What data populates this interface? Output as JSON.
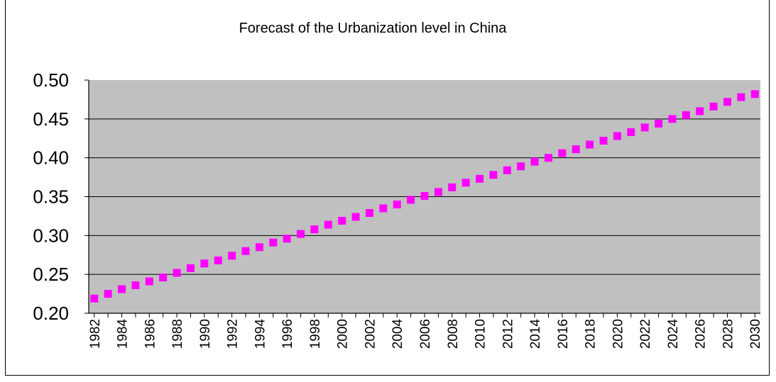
{
  "chart_data": {
    "type": "scatter",
    "title": "Forecast of the Urbanization level in China",
    "xlabel": "",
    "ylabel": "",
    "ylim": [
      0.2,
      0.5
    ],
    "yticks": [
      "0.20",
      "0.25",
      "0.30",
      "0.35",
      "0.40",
      "0.45",
      "0.50"
    ],
    "xticks": [
      "1982",
      "1984",
      "1986",
      "1988",
      "1990",
      "1992",
      "1994",
      "1996",
      "1998",
      "2000",
      "2002",
      "2004",
      "2006",
      "2008",
      "2010",
      "2012",
      "2014",
      "2016",
      "2018",
      "2020",
      "2022",
      "2024",
      "2026",
      "2028",
      "2030"
    ],
    "grid": true,
    "legend": "none",
    "plot_background": "#c0c0c0",
    "marker_color": "#ff00ff",
    "x": [
      1982,
      1983,
      1984,
      1985,
      1986,
      1987,
      1988,
      1989,
      1990,
      1991,
      1992,
      1993,
      1994,
      1995,
      1996,
      1997,
      1998,
      1999,
      2000,
      2001,
      2002,
      2003,
      2004,
      2005,
      2006,
      2007,
      2008,
      2009,
      2010,
      2011,
      2012,
      2013,
      2014,
      2015,
      2016,
      2017,
      2018,
      2019,
      2020,
      2021,
      2022,
      2023,
      2024,
      2025,
      2026,
      2027,
      2028,
      2029,
      2030
    ],
    "series": [
      {
        "values": [
          0.219,
          0.225,
          0.231,
          0.236,
          0.241,
          0.246,
          0.252,
          0.258,
          0.264,
          0.268,
          0.274,
          0.28,
          0.285,
          0.291,
          0.296,
          0.302,
          0.308,
          0.314,
          0.319,
          0.324,
          0.329,
          0.335,
          0.34,
          0.346,
          0.351,
          0.356,
          0.362,
          0.368,
          0.373,
          0.378,
          0.384,
          0.389,
          0.395,
          0.4,
          0.406,
          0.411,
          0.417,
          0.422,
          0.428,
          0.433,
          0.439,
          0.444,
          0.45,
          0.455,
          0.46,
          0.466,
          0.472,
          0.478,
          0.482
        ]
      }
    ]
  }
}
